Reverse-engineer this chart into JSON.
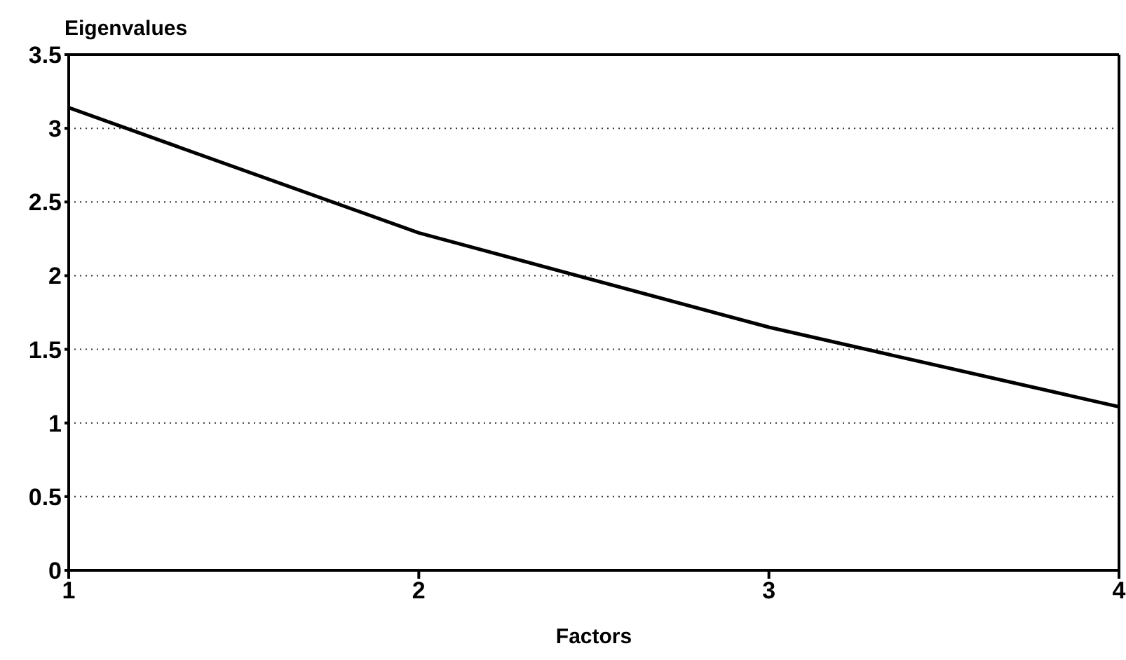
{
  "chart_data": {
    "type": "line",
    "ylabel": "Eigenvalues",
    "xlabel": "Factors",
    "x": [
      1,
      2,
      3,
      4
    ],
    "series": [
      {
        "color": "#000000",
        "values": [
          3.14,
          2.29,
          1.65,
          1.11
        ]
      }
    ],
    "xlim": [
      1,
      4
    ],
    "xticks": [
      1,
      2,
      3,
      4
    ],
    "ylim": [
      0,
      3.5
    ],
    "yticks": [
      0,
      0.5,
      1,
      1.5,
      2,
      2.5,
      3,
      3.5
    ],
    "grid": "y",
    "line_style": "solid",
    "marker": "none"
  }
}
